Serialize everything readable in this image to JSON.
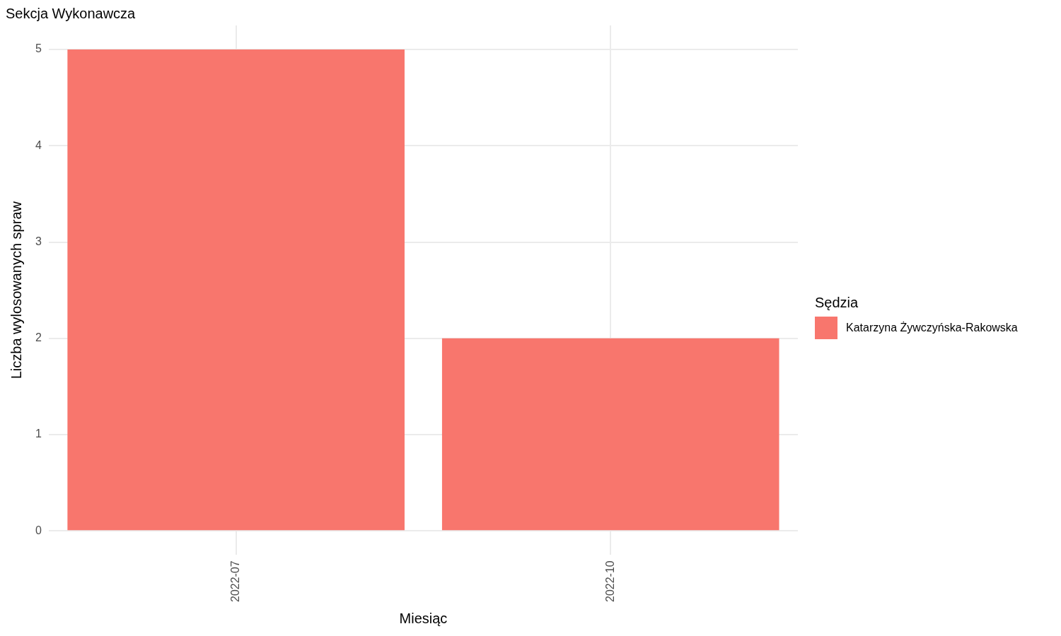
{
  "chart_data": {
    "type": "bar",
    "title": "Sekcja Wykonawcza",
    "xlabel": "Miesiąc",
    "ylabel": "Liczba wylosowanych spraw",
    "legend_title": "Sędzia",
    "categories": [
      "2022-07",
      "2022-10"
    ],
    "series": [
      {
        "name": "Katarzyna Żywczyńska-Rakowska",
        "color": "#f8766d",
        "values": [
          5,
          2
        ]
      }
    ],
    "ylim": [
      -0.25,
      5.25
    ],
    "yticks": [
      0,
      1,
      2,
      3,
      4,
      5
    ],
    "grid": true,
    "legend": "right"
  }
}
